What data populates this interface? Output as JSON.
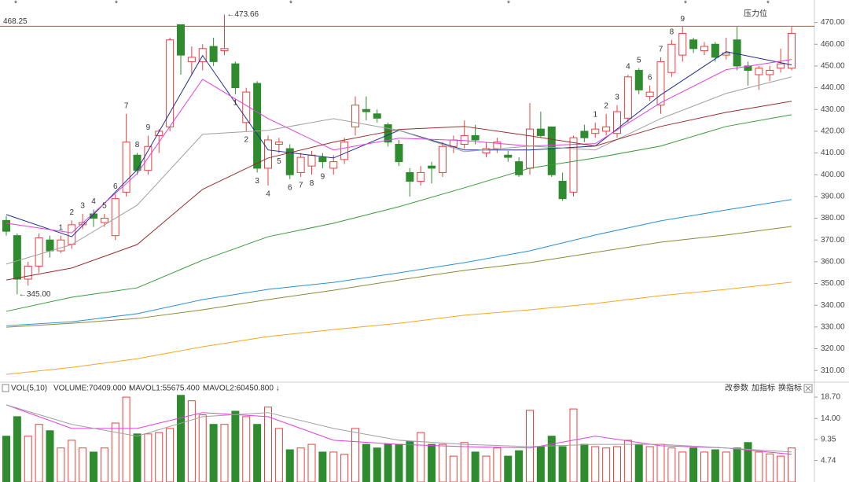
{
  "chart_data": [
    {
      "type": "candlestick",
      "open": [
        379,
        372,
        352,
        358,
        370,
        365,
        368,
        377,
        382,
        378,
        372,
        392,
        409,
        402,
        418,
        422,
        469,
        452,
        452,
        459,
        457,
        451,
        424,
        442,
        403,
        414,
        412,
        401,
        404,
        408,
        403,
        407,
        422,
        430,
        428,
        423,
        414,
        401,
        397,
        404,
        401,
        413,
        414,
        418,
        410,
        412,
        409,
        406,
        403,
        421,
        422,
        397,
        392,
        420,
        419,
        420,
        419,
        426,
        448,
        436,
        432,
        447,
        455,
        462,
        457,
        460,
        455,
        462,
        450,
        446,
        446,
        449,
        449
      ],
      "high": [
        381,
        373,
        360,
        373,
        372,
        372,
        379,
        382,
        384,
        382,
        391,
        428,
        410,
        418,
        421,
        463,
        469,
        459,
        460,
        463,
        473.66,
        452,
        440,
        443,
        418,
        417,
        414,
        410,
        411,
        410,
        409,
        417,
        436,
        436,
        430,
        424,
        416,
        403,
        404,
        406,
        415,
        418,
        425,
        423,
        415,
        417,
        411,
        408,
        433,
        429,
        422,
        401,
        418,
        423,
        424,
        428,
        432,
        446,
        449,
        441,
        454,
        462,
        468,
        463,
        461,
        461,
        463,
        468,
        452,
        450,
        450,
        458,
        468
      ],
      "low": [
        372,
        345,
        349,
        355,
        362,
        364,
        366,
        375,
        376,
        376,
        370,
        390,
        400,
        400,
        410,
        420,
        446,
        446,
        448,
        450,
        455,
        437,
        420,
        401,
        395,
        410,
        398,
        399,
        400,
        403,
        400,
        405,
        418,
        425,
        424,
        413,
        404,
        390,
        395,
        396,
        399,
        410,
        412,
        414,
        408,
        410,
        406,
        399,
        400,
        417,
        399,
        388,
        390,
        415,
        417,
        418,
        417,
        424,
        437,
        434,
        428,
        445,
        452,
        456,
        455,
        452,
        453,
        448,
        441,
        439,
        443,
        447,
        448
      ],
      "close": [
        374,
        352,
        358,
        371,
        365,
        370,
        377,
        378,
        380,
        380,
        389,
        415,
        402,
        413,
        420,
        462,
        455,
        454,
        458,
        452,
        458,
        440,
        438,
        403,
        416,
        415,
        400,
        408,
        409,
        406,
        406,
        415,
        432,
        429,
        426,
        415,
        406,
        397,
        401,
        403,
        413,
        416,
        418,
        416,
        412,
        415,
        408,
        400,
        421,
        418,
        400,
        389,
        417,
        417,
        421,
        422,
        429,
        445,
        439,
        438,
        452,
        460,
        465,
        458,
        459,
        454,
        456,
        450,
        448,
        449,
        448,
        451,
        465
      ],
      "up_color": "#e8413f",
      "down_color": "#2e8b2e",
      "ylim": [
        305,
        476
      ],
      "yticks": [
        {
          "value": 470,
          "label": "470.00"
        },
        {
          "value": 460,
          "label": "460.00"
        },
        {
          "value": 450,
          "label": "450.00"
        },
        {
          "value": 440,
          "label": "440.00"
        },
        {
          "value": 430,
          "label": "430.00"
        },
        {
          "value": 420,
          "label": "420.00"
        },
        {
          "value": 410,
          "label": "410.00"
        },
        {
          "value": 400,
          "label": "400.00"
        },
        {
          "value": 390,
          "label": "390.00"
        },
        {
          "value": 380,
          "label": "380.00"
        },
        {
          "value": 370,
          "label": "370.00"
        },
        {
          "value": 360,
          "label": "360.00"
        },
        {
          "value": 350,
          "label": "350.00"
        },
        {
          "value": 340,
          "label": "340.00"
        },
        {
          "value": 330,
          "label": "330.00"
        },
        {
          "value": 320,
          "label": "320.00"
        },
        {
          "value": 310,
          "label": "310.00"
        }
      ],
      "resistance_line": 468.25,
      "resistance_color": "#e8413f",
      "resistance_text": "压力位",
      "high_label": "←473.66",
      "low_label": "←345.00",
      "lines": [
        {
          "color": "#1f2f8f",
          "x": [
            0,
            6,
            12,
            18,
            24,
            30,
            36,
            42,
            48,
            54,
            60,
            66,
            72
          ],
          "values": [
            381.7,
            371.5,
            402.3,
            454.8,
            411.4,
            407.7,
            420.4,
            411.4,
            411.4,
            413.2,
            436.7,
            456.6,
            450.5
          ]
        },
        {
          "color": "#e040e0",
          "x": [
            0,
            6,
            12,
            18,
            24,
            30,
            36,
            42,
            48,
            54,
            60,
            66,
            72
          ],
          "values": [
            377.7,
            373.3,
            400.5,
            443.9,
            425.8,
            411.4,
            416.8,
            415.7,
            413.2,
            414.3,
            433.1,
            448.3,
            453.0
          ]
        },
        {
          "color": "#a0a0a0",
          "x": [
            0,
            6,
            12,
            18,
            24,
            30,
            36,
            42,
            48,
            54,
            60,
            66,
            72
          ],
          "values": [
            358.9,
            367.9,
            386.0,
            418.6,
            420.4,
            425.8,
            420.4,
            410.6,
            413.2,
            411.4,
            425.8,
            437.4,
            445.0
          ]
        },
        {
          "color": "#9b2d2d",
          "x": [
            0,
            6,
            12,
            18,
            24,
            30,
            36,
            42,
            48,
            54,
            60,
            66,
            72
          ],
          "values": [
            351.6,
            357.1,
            367.9,
            393.3,
            407.7,
            415.0,
            420.8,
            422.2,
            417.9,
            413.2,
            422.2,
            428.7,
            433.8
          ]
        },
        {
          "color": "#3a9a3a",
          "x": [
            0,
            6,
            12,
            18,
            24,
            30,
            36,
            42,
            48,
            54,
            60,
            66,
            72
          ],
          "values": [
            337.2,
            343.7,
            348.0,
            360.7,
            371.5,
            377.7,
            385.3,
            394.0,
            403.0,
            407.7,
            413.2,
            422.2,
            427.6
          ]
        },
        {
          "color": "#2a8fd8",
          "x": [
            0,
            6,
            12,
            18,
            24,
            30,
            36,
            42,
            48,
            54,
            60,
            66,
            72
          ],
          "values": [
            330.6,
            332.4,
            336.1,
            342.6,
            347.3,
            350.5,
            354.9,
            359.6,
            365.0,
            372.3,
            378.8,
            383.8,
            388.6
          ]
        },
        {
          "color": "#8a8a3a",
          "x": [
            0,
            6,
            12,
            18,
            24,
            30,
            36,
            42,
            48,
            54,
            60,
            66,
            72
          ],
          "values": [
            329.9,
            331.7,
            333.9,
            337.9,
            342.6,
            346.9,
            351.6,
            356.0,
            359.6,
            364.3,
            369.0,
            372.3,
            376.2
          ]
        },
        {
          "color": "#f5a623",
          "x": [
            0,
            6,
            12,
            18,
            24,
            30,
            36,
            42,
            48,
            54,
            60,
            66,
            72
          ],
          "values": [
            308.2,
            311.4,
            315.4,
            320.9,
            325.6,
            328.8,
            331.7,
            335.4,
            337.9,
            340.8,
            344.4,
            347.3,
            350.6
          ]
        }
      ],
      "td_counts": [
        null,
        null,
        null,
        null,
        null,
        {
          "label": "1",
          "color": "#f0a020",
          "pos": "above"
        },
        {
          "label": "2",
          "color": "#f0a020",
          "pos": "above"
        },
        {
          "label": "3",
          "color": "#f0a020",
          "pos": "above"
        },
        {
          "label": "4",
          "color": "#f0a020",
          "pos": "above"
        },
        {
          "label": "5",
          "color": "#f0a020",
          "pos": "above"
        },
        {
          "label": "6",
          "color": "#f0a020",
          "pos": "above"
        },
        {
          "label": "7",
          "color": "#f0a020",
          "pos": "above"
        },
        {
          "label": "8",
          "color": "#f0a020",
          "pos": "above"
        },
        {
          "label": "9",
          "color": "#2ca02c",
          "pos": "above"
        },
        null,
        null,
        null,
        null,
        null,
        null,
        null,
        {
          "label": "1",
          "color": "#f0a020",
          "pos": "below"
        },
        {
          "label": "2",
          "color": "#f0a020",
          "pos": "below"
        },
        {
          "label": "3",
          "color": "#f0a020",
          "pos": "below"
        },
        {
          "label": "4",
          "color": "#f0a020",
          "pos": "below"
        },
        {
          "label": "5",
          "color": "#f0a020",
          "pos": "below"
        },
        {
          "label": "6",
          "color": "#f0a020",
          "pos": "below"
        },
        {
          "label": "7",
          "color": "#f0a020",
          "pos": "below"
        },
        {
          "label": "8",
          "color": "#f0a020",
          "pos": "below"
        },
        {
          "label": "9",
          "color": "#e8413f",
          "pos": "below"
        },
        null,
        null,
        null,
        null,
        null,
        null,
        null,
        null,
        null,
        null,
        null,
        null,
        null,
        null,
        null,
        null,
        null,
        null,
        null,
        null,
        null,
        null,
        null,
        null,
        {
          "label": "1",
          "color": "#f0a020",
          "pos": "above"
        },
        {
          "label": "2",
          "color": "#f0a020",
          "pos": "above"
        },
        {
          "label": "3",
          "color": "#f0a020",
          "pos": "above"
        },
        {
          "label": "4",
          "color": "#f0a020",
          "pos": "above"
        },
        {
          "label": "5",
          "color": "#f0a020",
          "pos": "above"
        },
        {
          "label": "6",
          "color": "#f0a020",
          "pos": "above"
        },
        {
          "label": "7",
          "color": "#f0a020",
          "pos": "above"
        },
        {
          "label": "8",
          "color": "#f0a020",
          "pos": "above"
        },
        {
          "label": "9",
          "color": "#2ca02c",
          "pos": "above"
        },
        null,
        null,
        null,
        null,
        null,
        null,
        null,
        null,
        null,
        null
      ]
    },
    {
      "type": "bar",
      "indicator": "VOL(5,10)",
      "volume_text": "VOLUME:70409.000 ↑",
      "volume_color": "#1f3a93",
      "mavol1_text": "MAVOL1:55675.400 ↑",
      "mavol1_color": "#e040e0",
      "mavol2_text": "MAVOL2:60450.800 ↓",
      "mavol2_color": "#888888",
      "buttons": [
        "改参数",
        "加指标",
        "换指标"
      ],
      "values": [
        10.1,
        14.4,
        10.1,
        12.7,
        11.3,
        7.5,
        9.2,
        7.5,
        6.6,
        7.5,
        13.0,
        18.7,
        10.6,
        10.6,
        10.9,
        11.8,
        19.1,
        17.9,
        14.8,
        12.7,
        12.7,
        15.6,
        14.4,
        12.7,
        16.5,
        11.8,
        7.1,
        7.5,
        8.3,
        6.6,
        6.6,
        6.1,
        11.8,
        8.3,
        7.5,
        8.3,
        8.3,
        8.9,
        10.9,
        8.3,
        8.3,
        5.7,
        8.7,
        6.6,
        5.7,
        7.5,
        5.7,
        6.9,
        15.8,
        7.8,
        10.1,
        7.8,
        16.1,
        8.3,
        7.8,
        7.5,
        7.8,
        9.2,
        8.3,
        7.8,
        8.3,
        7.5,
        6.6,
        7.5,
        6.6,
        7.1,
        6.6,
        7.5,
        8.7,
        6.6,
        6.2,
        5.7,
        7.5
      ],
      "ylim": [
        0,
        20.1
      ],
      "yticks": [
        4.74,
        9.35,
        {
          "value": 14,
          "label": "14.00"
        },
        {
          "value": 18.7,
          "label": "18.70"
        }
      ],
      "lines": [
        {
          "color": "#e040e0",
          "x": [
            0,
            6,
            12,
            18,
            24,
            30,
            36,
            42,
            48,
            54,
            60,
            66,
            72
          ],
          "values": [
            17.0,
            11.8,
            11.8,
            15.3,
            14.4,
            9.2,
            8.3,
            7.8,
            7.5,
            10.1,
            8.0,
            7.5,
            6.1
          ]
        },
        {
          "color": "#a0a0a0",
          "x": [
            0,
            6,
            12,
            18,
            24,
            30,
            36,
            42,
            48,
            54,
            60,
            66,
            72
          ],
          "values": [
            17.0,
            12.7,
            10.1,
            14.4,
            15.3,
            11.8,
            9.2,
            8.3,
            7.8,
            8.3,
            8.3,
            7.5,
            6.6
          ]
        }
      ]
    }
  ]
}
